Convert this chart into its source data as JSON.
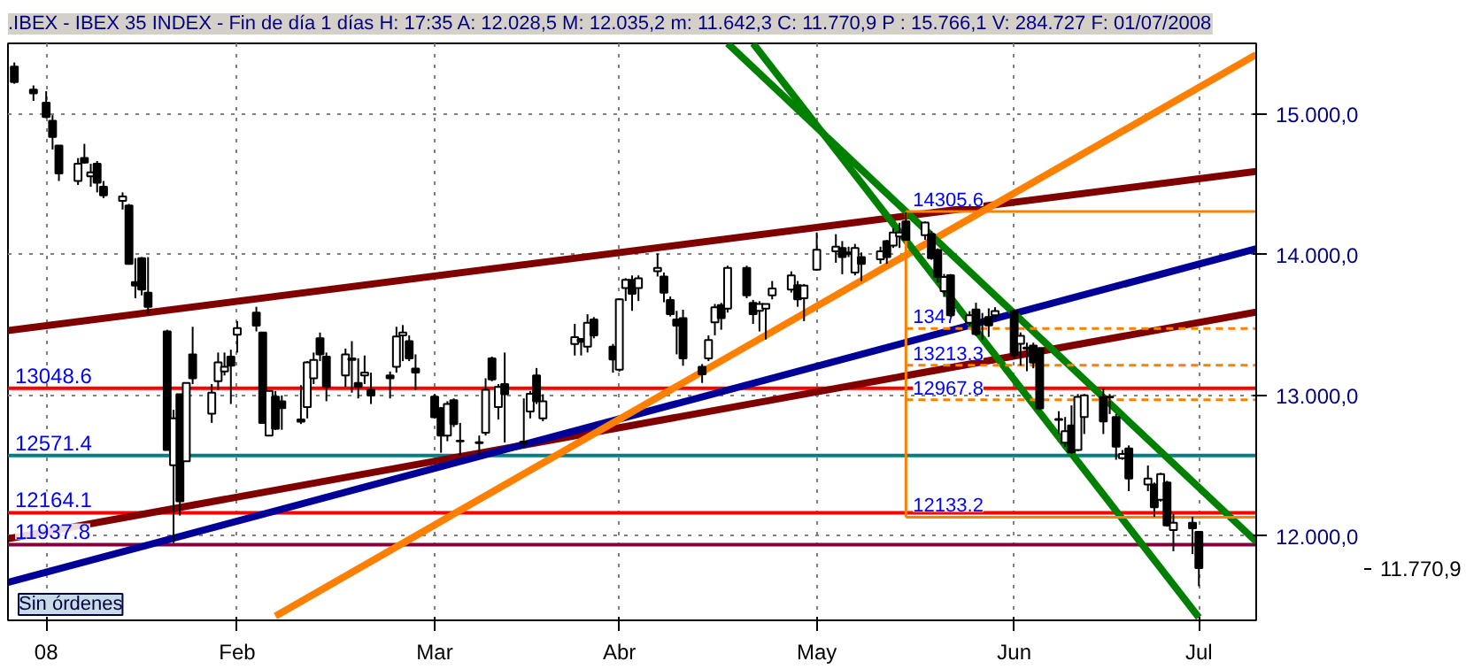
{
  "chart_data": {
    "type": "candlestick",
    "title": ".IBEX - IBEX 35 INDEX - Fin de día 1 días H: 17:35 A: 12.028,5 M: 12.035,2 m: 11.642,3 C: 11.770,9 P : 15.766,1 V: 284.727 F: 01/07/2008",
    "x": [
      "2007-12-28",
      "2007-12-31",
      "2008-01-02",
      "2008-01-03",
      "2008-01-04",
      "2008-01-07",
      "2008-01-08",
      "2008-01-09",
      "2008-01-10",
      "2008-01-11",
      "2008-01-14",
      "2008-01-15",
      "2008-01-16",
      "2008-01-17",
      "2008-01-18",
      "2008-01-21",
      "2008-01-22",
      "2008-01-23",
      "2008-01-24",
      "2008-01-25",
      "2008-01-28",
      "2008-01-29",
      "2008-01-30",
      "2008-01-31",
      "2008-02-01",
      "2008-02-04",
      "2008-02-05",
      "2008-02-06",
      "2008-02-07",
      "2008-02-08",
      "2008-02-11",
      "2008-02-12",
      "2008-02-13",
      "2008-02-14",
      "2008-02-15",
      "2008-02-18",
      "2008-02-19",
      "2008-02-20",
      "2008-02-21",
      "2008-02-22",
      "2008-02-25",
      "2008-02-26",
      "2008-02-27",
      "2008-02-28",
      "2008-02-29",
      "2008-03-03",
      "2008-03-04",
      "2008-03-05",
      "2008-03-06",
      "2008-03-07",
      "2008-03-10",
      "2008-03-11",
      "2008-03-12",
      "2008-03-13",
      "2008-03-14",
      "2008-03-17",
      "2008-03-18",
      "2008-03-19",
      "2008-03-20",
      "2008-03-25",
      "2008-03-26",
      "2008-03-27",
      "2008-03-28",
      "2008-03-31",
      "2008-04-01",
      "2008-04-02",
      "2008-04-03",
      "2008-04-04",
      "2008-04-07",
      "2008-04-08",
      "2008-04-09",
      "2008-04-10",
      "2008-04-11",
      "2008-04-14",
      "2008-04-15",
      "2008-04-16",
      "2008-04-17",
      "2008-04-18",
      "2008-04-21",
      "2008-04-22",
      "2008-04-23",
      "2008-04-24",
      "2008-04-25",
      "2008-04-28",
      "2008-04-29",
      "2008-04-30",
      "2008-05-02",
      "2008-05-05",
      "2008-05-06",
      "2008-05-07",
      "2008-05-08",
      "2008-05-09",
      "2008-05-12",
      "2008-05-13",
      "2008-05-14",
      "2008-05-15",
      "2008-05-16",
      "2008-05-19",
      "2008-05-20",
      "2008-05-21",
      "2008-05-22",
      "2008-05-23",
      "2008-05-26",
      "2008-05-27",
      "2008-05-28",
      "2008-05-29",
      "2008-05-30",
      "2008-06-02",
      "2008-06-03",
      "2008-06-04",
      "2008-06-05",
      "2008-06-06",
      "2008-06-09",
      "2008-06-10",
      "2008-06-11",
      "2008-06-12",
      "2008-06-13",
      "2008-06-16",
      "2008-06-17",
      "2008-06-18",
      "2008-06-19",
      "2008-06-20",
      "2008-06-23",
      "2008-06-24",
      "2008-06-25",
      "2008-06-26",
      "2008-06-27",
      "2008-06-30",
      "2008-07-01"
    ],
    "ohlc": [
      [
        15335,
        15364,
        15213,
        15225
      ],
      [
        15172,
        15201,
        15091,
        15144
      ],
      [
        15079,
        15160,
        14969,
        14977
      ],
      [
        14949,
        14990,
        14746,
        14835
      ],
      [
        14774,
        14774,
        14522,
        14575
      ],
      [
        14522,
        14685,
        14494,
        14644
      ],
      [
        14685,
        14786,
        14644,
        14652
      ],
      [
        14555,
        14644,
        14481,
        14583
      ],
      [
        14644,
        14664,
        14441,
        14510
      ],
      [
        14481,
        14522,
        14400,
        14420
      ],
      [
        14380,
        14441,
        14319,
        14412
      ],
      [
        14347,
        14359,
        13933,
        13933
      ],
      [
        13803,
        13974,
        13689,
        13778
      ],
      [
        13973,
        13981,
        13709,
        13750
      ],
      [
        13729,
        13981,
        13575,
        13628
      ],
      [
        13453,
        13465,
        12611,
        12611
      ],
      [
        12502,
        12896,
        11949,
        12835
      ],
      [
        13006,
        13006,
        12144,
        12246
      ],
      [
        12530,
        13087,
        12530,
        13087
      ],
      [
        13290,
        13486,
        13079,
        13120
      ],
      [
        12868,
        13079,
        12803,
        13018
      ],
      [
        13099,
        13303,
        13038,
        13233
      ],
      [
        13168,
        13303,
        13140,
        13201
      ],
      [
        13274,
        13323,
        12937,
        13209
      ],
      [
        13429,
        13526,
        13303,
        13477
      ],
      [
        13587,
        13628,
        13453,
        13494
      ],
      [
        13445,
        13445,
        12803,
        12803
      ],
      [
        12713,
        13030,
        12713,
        13030
      ],
      [
        12990,
        13030,
        12754,
        12762
      ],
      [
        12957,
        12998,
        12754,
        12908
      ],
      [
        12827,
        13071,
        12795,
        12811
      ],
      [
        12916,
        13242,
        12835,
        13233
      ],
      [
        13120,
        13303,
        13079,
        13250
      ],
      [
        13404,
        13445,
        13242,
        13290
      ],
      [
        13274,
        13303,
        12957,
        13059
      ],
      [
        13140,
        13331,
        13059,
        13290
      ],
      [
        13262,
        13384,
        13018,
        13250
      ],
      [
        13087,
        13262,
        12977,
        13059
      ],
      [
        13140,
        13282,
        13079,
        13160
      ],
      [
        13038,
        13160,
        12937,
        12998
      ],
      [
        13140,
        13168,
        12977,
        13120
      ],
      [
        13201,
        13486,
        13160,
        13417
      ],
      [
        13425,
        13498,
        13242,
        13445
      ],
      [
        13384,
        13425,
        13242,
        13262
      ],
      [
        13189,
        13290,
        13038,
        13160
      ],
      [
        12990,
        13006,
        12835,
        12843
      ],
      [
        12908,
        12916,
        12591,
        12713
      ],
      [
        12713,
        12957,
        12673,
        12937
      ],
      [
        12965,
        12977,
        12774,
        12795
      ],
      [
        12676,
        12803,
        12571,
        12672
      ],
      [
        12665,
        12713,
        12571,
        12660
      ],
      [
        12733,
        13120,
        12713,
        13038
      ],
      [
        13262,
        13274,
        13099,
        13112
      ],
      [
        12916,
        13079,
        12827,
        13059
      ],
      [
        13079,
        13303,
        12664,
        13006
      ],
      [
        12670,
        12977,
        12624,
        12660
      ],
      [
        12884,
        13030,
        12835,
        13010
      ],
      [
        13140,
        13193,
        12937,
        12957
      ],
      [
        12835,
        13006,
        12815,
        12957
      ],
      [
        13364,
        13506,
        13282,
        13413
      ],
      [
        13400,
        13404,
        13282,
        13380
      ],
      [
        13344,
        13575,
        13303,
        13514
      ],
      [
        13538,
        13555,
        13404,
        13425
      ],
      [
        13344,
        13364,
        13160,
        13254
      ],
      [
        13181,
        13689,
        13168,
        13681
      ],
      [
        13762,
        13831,
        13669,
        13819
      ],
      [
        13819,
        13851,
        13600,
        13721
      ],
      [
        13762,
        13851,
        13669,
        13831
      ],
      [
        13880,
        14006,
        13843,
        13904
      ],
      [
        13843,
        13872,
        13660,
        13729
      ],
      [
        13677,
        13701,
        13559,
        13575
      ],
      [
        13538,
        13599,
        13290,
        13494
      ],
      [
        13547,
        13607,
        13209,
        13262
      ],
      [
        13201,
        13221,
        13087,
        13148
      ],
      [
        13262,
        13425,
        13242,
        13392
      ],
      [
        13518,
        13648,
        13425,
        13624
      ],
      [
        13640,
        13656,
        13465,
        13547
      ],
      [
        13615,
        13920,
        13587,
        13904
      ],
      [
        13904,
        13920,
        13689,
        13709
      ],
      [
        13656,
        13677,
        13506,
        13575
      ],
      [
        13600,
        13668,
        13453,
        13648
      ],
      [
        13615,
        13648,
        13396,
        13648
      ],
      [
        13709,
        13811,
        13681,
        13758
      ],
      [
        13750,
        13880,
        13729,
        13851
      ],
      [
        13782,
        13811,
        13628,
        13681
      ],
      [
        13689,
        13790,
        13526,
        13778
      ],
      [
        13892,
        14156,
        13884,
        14034
      ],
      [
        14022,
        14144,
        13941,
        14055
      ],
      [
        14046,
        14095,
        13859,
        13981
      ],
      [
        14014,
        14055,
        13981,
        14002
      ],
      [
        13872,
        14075,
        13851,
        14046
      ],
      [
        13981,
        14014,
        13811,
        13933
      ],
      [
        13965,
        14055,
        13933,
        14022
      ],
      [
        14095,
        14103,
        13933,
        13981
      ],
      [
        14063,
        14185,
        14046,
        14156
      ],
      [
        14128,
        14225,
        14046,
        14156
      ],
      [
        14234,
        14300,
        14096,
        14104
      ],
      [
        14137,
        14234,
        14104,
        14226
      ],
      [
        14145,
        14165,
        13962,
        13974
      ],
      [
        14031,
        14043,
        13800,
        13840
      ],
      [
        13739,
        13861,
        13698,
        13840
      ],
      [
        13852,
        13861,
        13556,
        13568
      ],
      [
        13515,
        13597,
        13495,
        13568
      ],
      [
        13609,
        13657,
        13422,
        13434
      ],
      [
        13520,
        13584,
        13394,
        13515
      ],
      [
        13556,
        13617,
        13414,
        13495
      ],
      [
        13568,
        13625,
        13536,
        13597
      ],
      [
        13597,
        13609,
        13260,
        13284
      ],
      [
        13365,
        13446,
        13211,
        13422
      ],
      [
        13338,
        13373,
        13170,
        13330
      ],
      [
        13353,
        13373,
        13191,
        13231
      ],
      [
        13333,
        13341,
        12894,
        12906
      ],
      [
        12830,
        12886,
        12724,
        12825
      ],
      [
        12663,
        12845,
        12634,
        12744
      ],
      [
        12785,
        12927,
        12582,
        12594
      ],
      [
        12610,
        13008,
        12602,
        12988
      ],
      [
        12845,
        13008,
        12724,
        12999
      ],
      [
        12988,
        13048,
        12724,
        12813
      ],
      [
        12990,
        13008,
        12866,
        12985
      ],
      [
        12845,
        12866,
        12541,
        12634
      ],
      [
        12553,
        12610,
        12541,
        12582
      ],
      [
        12622,
        12643,
        12318,
        12407
      ],
      [
        12366,
        12500,
        12318,
        12407
      ],
      [
        12366,
        12379,
        12135,
        12204
      ],
      [
        12257,
        12448,
        12244,
        12439
      ],
      [
        12379,
        12391,
        12066,
        12074
      ],
      [
        12042,
        12155,
        11891,
        12094
      ],
      [
        12094,
        12135,
        11871,
        12054
      ],
      [
        12028.5,
        12035.2,
        11642.3,
        11770.9
      ]
    ],
    "xlim": [
      "2007-12-27",
      "2008-07-10"
    ],
    "xticks": [
      {
        "value": "2008-01-02",
        "label": "08"
      },
      {
        "value": "2008-02-01",
        "label": "Feb"
      },
      {
        "value": "2008-03-03",
        "label": "Mar"
      },
      {
        "value": "2008-04-01",
        "label": "Abr"
      },
      {
        "value": "2008-05-02",
        "label": "May"
      },
      {
        "value": "2008-06-02",
        "label": "Jun"
      },
      {
        "value": "2008-07-01",
        "label": "Jul"
      }
    ],
    "ylim": [
      11400,
      15500
    ],
    "yticks": [
      {
        "value": 12000,
        "label": "12.000,0"
      },
      {
        "value": 13000,
        "label": "13.000,0"
      },
      {
        "value": 14000,
        "label": "14.000,0"
      },
      {
        "value": 15000,
        "label": "15.000,0"
      }
    ],
    "grid": true,
    "series": [
      {
        "type": "line",
        "color": "#800000",
        "x": [
          "2007-12-27",
          "2008-07-10"
        ],
        "values": [
          13460,
          14590
        ]
      },
      {
        "type": "line",
        "color": "#800000",
        "x": [
          "2007-12-27",
          "2008-07-10"
        ],
        "values": [
          11980,
          13590
        ]
      },
      {
        "type": "line",
        "color": "#000099",
        "x": [
          "2007-12-27",
          "2008-07-10"
        ],
        "values": [
          11670,
          14040
        ]
      },
      {
        "type": "line",
        "color": "#ff8000",
        "x": [
          "2008-02-07",
          "2008-07-10"
        ],
        "values": [
          11430,
          15420
        ]
      },
      {
        "type": "line",
        "color": "#008000",
        "x": [
          "2008-04-18",
          "2008-07-10"
        ],
        "values": [
          15500,
          11960
        ]
      },
      {
        "type": "line",
        "color": "#008000",
        "x": [
          "2008-04-22",
          "2008-07-01"
        ],
        "values": [
          15500,
          11420
        ]
      },
      {
        "type": "line",
        "name": "14305.6",
        "color": "#ff8000",
        "line_style": "solid",
        "x": [
          "2008-05-16",
          "2008-07-10"
        ],
        "values": [
          14305.6,
          14305.6
        ]
      },
      {
        "type": "line",
        "name": "1347",
        "color": "#ff8000",
        "line_style": "dashed",
        "x": [
          "2008-05-16",
          "2008-07-10"
        ],
        "values": [
          13474,
          13474
        ]
      },
      {
        "type": "line",
        "name": "13213.3",
        "color": "#ff8000",
        "line_style": "dashed",
        "x": [
          "2008-05-16",
          "2008-07-10"
        ],
        "values": [
          13213.3,
          13213.3
        ]
      },
      {
        "type": "line",
        "name": "12967.8",
        "color": "#ff8000",
        "line_style": "dashed",
        "x": [
          "2008-05-16",
          "2008-07-10"
        ],
        "values": [
          12967.8,
          12967.8
        ]
      },
      {
        "type": "line",
        "name": "12133.2",
        "color": "#ff8000",
        "line_style": "solid",
        "x": [
          "2008-05-16",
          "2008-07-10"
        ],
        "values": [
          12133.2,
          12133.2
        ]
      },
      {
        "type": "line",
        "color": "#ff8000",
        "line_style": "solid",
        "x": [
          "2008-05-16",
          "2008-05-16"
        ],
        "values": [
          12133.2,
          14305.6
        ]
      }
    ],
    "ref_lines": [
      {
        "axis": "y",
        "value": 13048.6,
        "label": "13048.6",
        "color": "#ff0000"
      },
      {
        "axis": "y",
        "value": 12571.4,
        "label": "12571.4",
        "color": "#008080"
      },
      {
        "axis": "y",
        "value": 12164.1,
        "label": "12164.1",
        "color": "#ff0000"
      },
      {
        "axis": "y",
        "value": 11937.8,
        "label": "11937.8",
        "color": "#800040"
      }
    ],
    "annotations": [
      "Sin órdenes",
      "11.770,9"
    ]
  }
}
